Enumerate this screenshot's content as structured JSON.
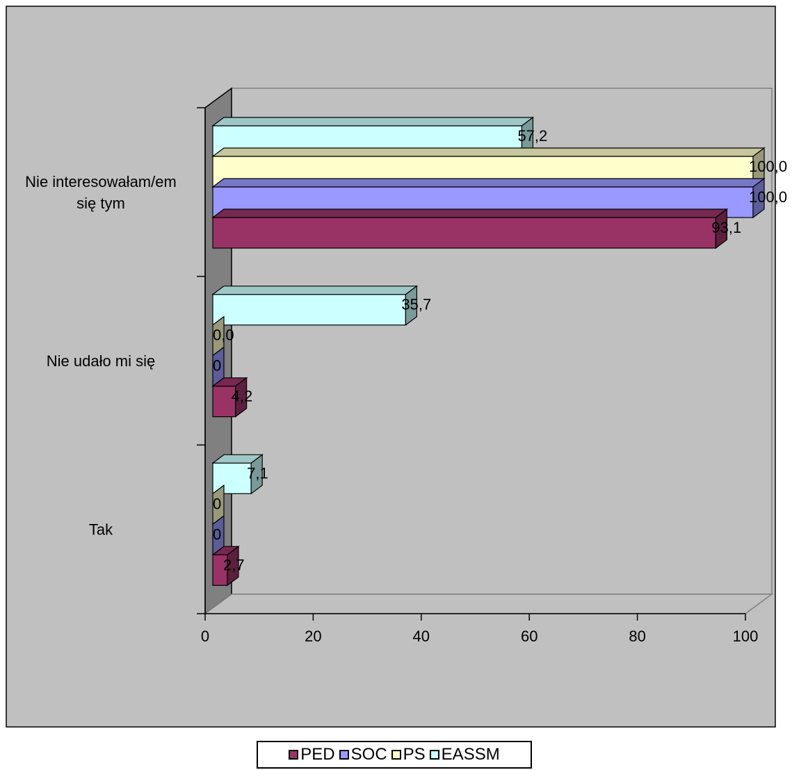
{
  "chart_data": {
    "type": "bar",
    "orientation": "horizontal",
    "three_d": true,
    "categories": [
      "Nie interesowałam/em się tym",
      "Nie udało mi się",
      "Tak"
    ],
    "category_label_lines": [
      [
        "Nie interesowałam/em",
        "się tym"
      ],
      [
        "Nie udało mi się"
      ],
      [
        "Tak"
      ]
    ],
    "series": [
      {
        "name": "PED",
        "color": "#993366",
        "values": [
          93.1,
          4.2,
          2.7
        ],
        "labels": [
          "93,1",
          "4,2",
          "2,7"
        ]
      },
      {
        "name": "SOC",
        "color": "#9999FF",
        "values": [
          100.0,
          0,
          0
        ],
        "labels": [
          "100,0",
          "0",
          "0"
        ]
      },
      {
        "name": "PS",
        "color": "#FFFFCC",
        "values": [
          100.0,
          0,
          0
        ],
        "labels": [
          "100,0",
          "0,0",
          "0"
        ]
      },
      {
        "name": "EASSM",
        "color": "#CCFFFF",
        "values": [
          57.2,
          35.7,
          7.1
        ],
        "labels": [
          "57,2",
          "35,7",
          "7,1"
        ]
      }
    ],
    "x_ticks": [
      0,
      20,
      40,
      60,
      80,
      100
    ],
    "xlim": [
      0,
      100
    ],
    "title": "",
    "xlabel": "",
    "ylabel": "",
    "legend_position": "bottom",
    "grid": false,
    "plot_area_color": "#C0C0C0"
  }
}
